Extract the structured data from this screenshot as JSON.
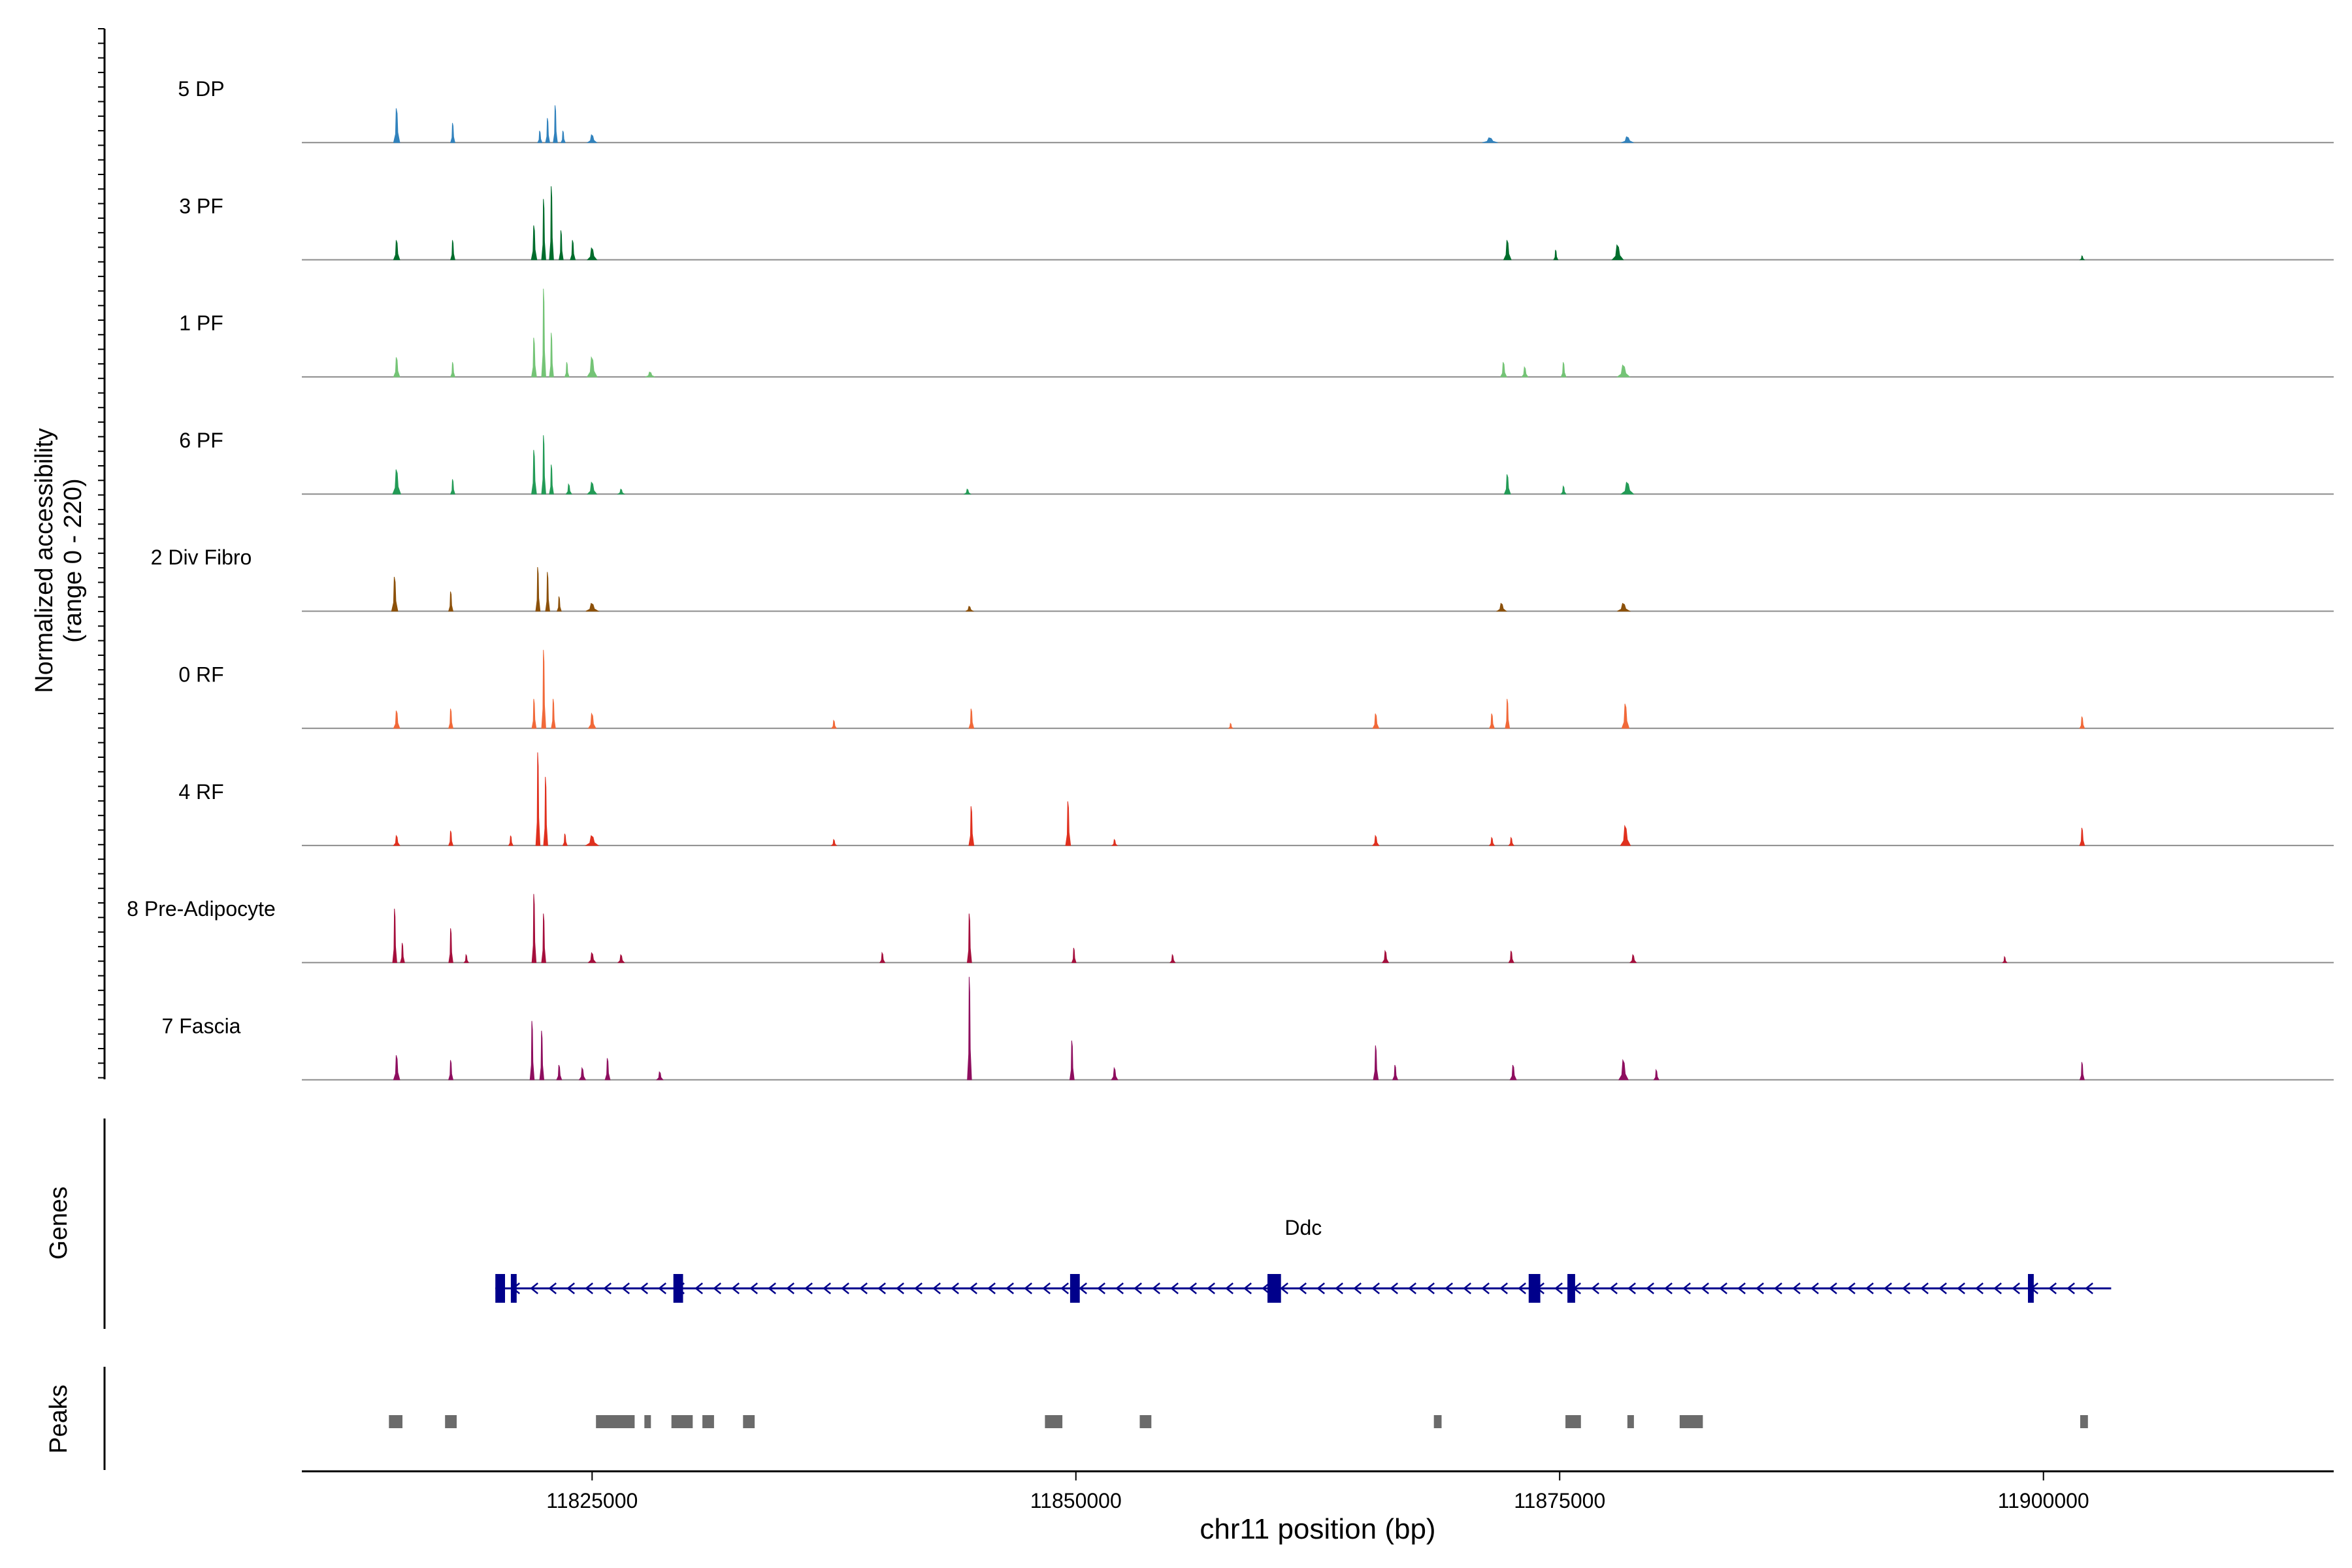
{
  "chart_data": {
    "type": "area",
    "title": "",
    "xlabel": "chr11 position (bp)",
    "ylabel_line1": "Normalized accessibility",
    "ylabel_line2": "(range 0 - 220)",
    "xlim": [
      11810000,
      11915000
    ],
    "ylim": [
      0,
      220
    ],
    "x_ticks": [
      11825000,
      11850000,
      11875000,
      11900000
    ],
    "x_tick_labels": [
      "11825000",
      "11850000",
      "11875000",
      "11900000"
    ],
    "panel_labels": {
      "genes": "Genes",
      "peaks": "Peaks"
    },
    "series": [
      {
        "name": "5 DP",
        "color": "#3182BD",
        "peaks": [
          [
            11814900,
            0.35,
            100
          ],
          [
            11817800,
            0.2,
            70
          ],
          [
            11822300,
            0.12,
            70
          ],
          [
            11822700,
            0.25,
            60
          ],
          [
            11823100,
            0.38,
            55
          ],
          [
            11823500,
            0.12,
            60
          ],
          [
            11825000,
            0.08,
            150
          ],
          [
            11871400,
            0.05,
            250
          ],
          [
            11878500,
            0.06,
            200
          ]
        ]
      },
      {
        "name": "3 PF",
        "color": "#006D2C",
        "peaks": [
          [
            11814900,
            0.2,
            100
          ],
          [
            11817800,
            0.2,
            70
          ],
          [
            11822000,
            0.35,
            90
          ],
          [
            11822500,
            0.62,
            55
          ],
          [
            11822900,
            0.75,
            45
          ],
          [
            11823400,
            0.3,
            60
          ],
          [
            11824000,
            0.2,
            80
          ],
          [
            11825000,
            0.12,
            150
          ],
          [
            11872300,
            0.2,
            120
          ],
          [
            11874800,
            0.1,
            60
          ],
          [
            11878000,
            0.15,
            180
          ],
          [
            11902000,
            0.04,
            60
          ]
        ]
      },
      {
        "name": "1 PF",
        "color": "#74C476",
        "peaks": [
          [
            11814900,
            0.2,
            100
          ],
          [
            11817800,
            0.15,
            70
          ],
          [
            11822000,
            0.4,
            80
          ],
          [
            11822500,
            0.9,
            45
          ],
          [
            11822900,
            0.45,
            50
          ],
          [
            11823700,
            0.15,
            70
          ],
          [
            11825000,
            0.2,
            160
          ],
          [
            11828000,
            0.05,
            150
          ],
          [
            11872100,
            0.15,
            100
          ],
          [
            11873200,
            0.1,
            100
          ],
          [
            11875200,
            0.15,
            80
          ],
          [
            11878300,
            0.12,
            200
          ]
        ]
      },
      {
        "name": "6 PF",
        "color": "#239B56",
        "peaks": [
          [
            11814900,
            0.25,
            130
          ],
          [
            11817800,
            0.15,
            70
          ],
          [
            11822000,
            0.45,
            80
          ],
          [
            11822500,
            0.6,
            55
          ],
          [
            11822900,
            0.3,
            60
          ],
          [
            11823800,
            0.1,
            90
          ],
          [
            11825000,
            0.12,
            150
          ],
          [
            11826500,
            0.05,
            100
          ],
          [
            11844400,
            0.05,
            100
          ],
          [
            11872300,
            0.2,
            100
          ],
          [
            11875200,
            0.08,
            80
          ],
          [
            11878500,
            0.12,
            200
          ]
        ]
      },
      {
        "name": "2 Div Fibro",
        "color": "#8C510A",
        "peaks": [
          [
            11814800,
            0.35,
            100
          ],
          [
            11817700,
            0.2,
            70
          ],
          [
            11822200,
            0.45,
            70
          ],
          [
            11822700,
            0.4,
            60
          ],
          [
            11823300,
            0.15,
            60
          ],
          [
            11825000,
            0.08,
            200
          ],
          [
            11844500,
            0.05,
            120
          ],
          [
            11872000,
            0.08,
            150
          ],
          [
            11878300,
            0.08,
            200
          ]
        ]
      },
      {
        "name": "0 RF",
        "color": "#F16939",
        "peaks": [
          [
            11814900,
            0.18,
            100
          ],
          [
            11817700,
            0.2,
            70
          ],
          [
            11822000,
            0.3,
            70
          ],
          [
            11822500,
            0.8,
            45
          ],
          [
            11823000,
            0.3,
            50
          ],
          [
            11825000,
            0.15,
            120
          ],
          [
            11837500,
            0.08,
            80
          ],
          [
            11844600,
            0.2,
            80
          ],
          [
            11858000,
            0.05,
            60
          ],
          [
            11865500,
            0.15,
            100
          ],
          [
            11871500,
            0.15,
            80
          ],
          [
            11872300,
            0.3,
            70
          ],
          [
            11878400,
            0.25,
            120
          ],
          [
            11902000,
            0.12,
            80
          ]
        ]
      },
      {
        "name": "4 RF",
        "color": "#E0301E",
        "peaks": [
          [
            11814900,
            0.1,
            100
          ],
          [
            11817700,
            0.15,
            70
          ],
          [
            11820800,
            0.1,
            70
          ],
          [
            11822200,
            0.95,
            55
          ],
          [
            11822600,
            0.7,
            50
          ],
          [
            11823600,
            0.12,
            70
          ],
          [
            11825000,
            0.1,
            200
          ],
          [
            11837500,
            0.06,
            80
          ],
          [
            11844600,
            0.4,
            80
          ],
          [
            11849600,
            0.45,
            80
          ],
          [
            11852000,
            0.06,
            80
          ],
          [
            11865500,
            0.1,
            100
          ],
          [
            11871500,
            0.08,
            80
          ],
          [
            11872500,
            0.08,
            80
          ],
          [
            11878400,
            0.2,
            160
          ],
          [
            11902000,
            0.18,
            80
          ]
        ]
      },
      {
        "name": "8 Pre-Adipocyte",
        "color": "#A50F3C",
        "peaks": [
          [
            11814800,
            0.55,
            60
          ],
          [
            11815200,
            0.2,
            60
          ],
          [
            11817700,
            0.35,
            60
          ],
          [
            11818500,
            0.08,
            70
          ],
          [
            11822000,
            0.7,
            50
          ],
          [
            11822500,
            0.5,
            60
          ],
          [
            11825000,
            0.1,
            120
          ],
          [
            11826500,
            0.08,
            100
          ],
          [
            11840000,
            0.1,
            80
          ],
          [
            11844500,
            0.5,
            70
          ],
          [
            11849900,
            0.15,
            60
          ],
          [
            11855000,
            0.08,
            80
          ],
          [
            11866000,
            0.12,
            100
          ],
          [
            11872500,
            0.12,
            80
          ],
          [
            11878800,
            0.08,
            100
          ],
          [
            11898000,
            0.06,
            60
          ]
        ]
      },
      {
        "name": "7 Fascia",
        "color": "#8E0E5F",
        "peaks": [
          [
            11814900,
            0.25,
            100
          ],
          [
            11817700,
            0.2,
            70
          ],
          [
            11821900,
            0.6,
            60
          ],
          [
            11822400,
            0.5,
            50
          ],
          [
            11823300,
            0.15,
            80
          ],
          [
            11824500,
            0.12,
            100
          ],
          [
            11825800,
            0.22,
            80
          ],
          [
            11828500,
            0.08,
            100
          ],
          [
            11844500,
            1.05,
            60
          ],
          [
            11849800,
            0.4,
            70
          ],
          [
            11852000,
            0.12,
            100
          ],
          [
            11865500,
            0.35,
            80
          ],
          [
            11866500,
            0.15,
            80
          ],
          [
            11872600,
            0.15,
            100
          ],
          [
            11878300,
            0.2,
            150
          ],
          [
            11880000,
            0.1,
            80
          ],
          [
            11902000,
            0.18,
            70
          ]
        ]
      }
    ],
    "gene": {
      "name": "Ddc",
      "strand": "-",
      "start": 11820000,
      "end": 11903500,
      "exons": [
        [
          11820000,
          11820500
        ],
        [
          11820800,
          11821100
        ],
        [
          11829200,
          11829700
        ],
        [
          11849700,
          11850200
        ],
        [
          11859900,
          11860600
        ],
        [
          11873400,
          11874000
        ],
        [
          11875400,
          11875800
        ],
        [
          11899200,
          11899500
        ]
      ]
    },
    "peak_regions": [
      [
        11814500,
        11815200
      ],
      [
        11817400,
        11818000
      ],
      [
        11825200,
        11827200
      ],
      [
        11827700,
        11828000
      ],
      [
        11829100,
        11830200
      ],
      [
        11830700,
        11831300
      ],
      [
        11832800,
        11833400
      ],
      [
        11848400,
        11849300
      ],
      [
        11853300,
        11853900
      ],
      [
        11868500,
        11868900
      ],
      [
        11875300,
        11876100
      ],
      [
        11878500,
        11878800
      ],
      [
        11881200,
        11882400
      ],
      [
        11901900,
        11902300
      ]
    ]
  }
}
